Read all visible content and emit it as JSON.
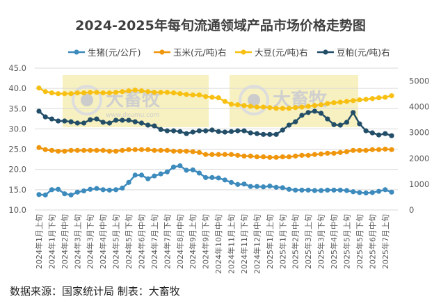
{
  "chart_data": {
    "type": "line",
    "title": "2024-2025年每旬流通领域产品市场价格走势图",
    "source": "数据来源：国家统计局  制表：大畜牧",
    "watermark": {
      "brand": "大畜牧",
      "url": "www.dxumu.com"
    },
    "legend_position": "top",
    "grid": true,
    "y_left": {
      "ylim": [
        10,
        45
      ],
      "ticks": [
        "10.0",
        "15.0",
        "20.0",
        "25.0",
        "30.0",
        "35.0",
        "40.0",
        "45.0"
      ]
    },
    "y_right": {
      "ylim": [
        0,
        5500
      ],
      "ticks": [
        "0",
        "1000",
        "2000",
        "3000",
        "4000",
        "5000"
      ]
    },
    "x_tick_labels": [
      "2024年1月上旬",
      "2024年1月下旬",
      "2024年2月中旬",
      "2024年3月上旬",
      "2024年3月下旬",
      "2024年4月中旬",
      "2024年5月上旬",
      "2024年5月下旬",
      "2024年6月中旬",
      "2024年7月上旬",
      "2024年7月下旬",
      "2024年8月中旬",
      "2024年9月上旬",
      "2024年9月下旬",
      "2024年10月中旬",
      "2024年11月上旬",
      "2024年11月下旬",
      "2024年12月中旬",
      "2025年1月上旬",
      "2025年1月下旬",
      "2025年2月中旬",
      "2025年3月上旬",
      "2025年3月下旬",
      "2025年4月中旬",
      "2025年5月上旬",
      "2025年5月下旬",
      "2025年6月中旬",
      "2025年7月上旬"
    ],
    "series": [
      {
        "name": "生猪(元/公斤)",
        "axis": "left",
        "color": "#3d8bbd",
        "values": [
          13.8,
          13.7,
          15.0,
          15.1,
          14.0,
          13.7,
          14.4,
          14.7,
          15.1,
          15.3,
          15.0,
          14.9,
          15.0,
          15.4,
          16.8,
          18.6,
          18.6,
          17.7,
          18.4,
          18.9,
          19.4,
          20.6,
          20.9,
          19.8,
          19.9,
          19.1,
          18.0,
          18.0,
          17.9,
          17.4,
          16.8,
          16.3,
          16.4,
          15.8,
          15.8,
          15.7,
          15.9,
          15.6,
          15.5,
          15.1,
          14.9,
          14.9,
          14.9,
          14.8,
          14.8,
          14.9,
          14.9,
          14.9,
          14.8,
          14.5,
          14.3,
          14.2,
          14.3,
          14.6,
          15.0,
          14.4
        ]
      },
      {
        "name": "玉米(元/吨)右",
        "axis": "right",
        "color": "#f0960c",
        "values": [
          2420,
          2340,
          2310,
          2280,
          2280,
          2310,
          2310,
          2310,
          2310,
          2310,
          2310,
          2280,
          2280,
          2310,
          2340,
          2340,
          2340,
          2340,
          2310,
          2310,
          2310,
          2280,
          2280,
          2280,
          2260,
          2230,
          2150,
          2150,
          2150,
          2150,
          2150,
          2120,
          2090,
          2090,
          2060,
          2060,
          2040,
          2040,
          2060,
          2060,
          2090,
          2120,
          2120,
          2150,
          2170,
          2200,
          2200,
          2230,
          2260,
          2310,
          2310,
          2310,
          2340,
          2340,
          2360,
          2340
        ]
      },
      {
        "name": "大豆(元/吨)右",
        "axis": "right",
        "color": "#f7c012",
        "values": [
          4730,
          4590,
          4540,
          4510,
          4510,
          4510,
          4540,
          4540,
          4560,
          4560,
          4540,
          4540,
          4560,
          4590,
          4620,
          4650,
          4620,
          4590,
          4560,
          4560,
          4560,
          4540,
          4510,
          4480,
          4460,
          4460,
          4400,
          4370,
          4350,
          4210,
          4100,
          4080,
          4050,
          4020,
          3990,
          3990,
          3970,
          3940,
          3940,
          3940,
          3970,
          3990,
          4020,
          4050,
          4080,
          4130,
          4160,
          4180,
          4210,
          4240,
          4270,
          4290,
          4320,
          4350,
          4370,
          4430
        ]
      },
      {
        "name": "豆粕(元/吨)右",
        "axis": "right",
        "color": "#234e68",
        "values": [
          3830,
          3610,
          3530,
          3450,
          3450,
          3420,
          3370,
          3370,
          3500,
          3530,
          3400,
          3370,
          3480,
          3480,
          3480,
          3420,
          3370,
          3290,
          3260,
          3120,
          3070,
          3070,
          3040,
          2960,
          3020,
          3070,
          3070,
          3100,
          3040,
          3020,
          3040,
          3070,
          3070,
          2990,
          2960,
          2930,
          2930,
          2930,
          3100,
          3290,
          3420,
          3670,
          3780,
          3830,
          3750,
          3530,
          3310,
          3290,
          3400,
          3780,
          3340,
          3070,
          2990,
          2910,
          2960,
          2880
        ]
      }
    ]
  }
}
